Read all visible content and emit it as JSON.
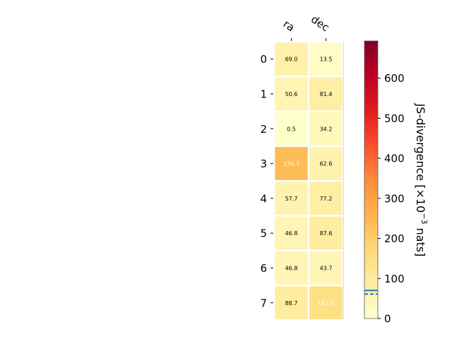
{
  "chart_data": {
    "type": "heatmap",
    "columns": [
      "ra",
      "dec"
    ],
    "rows": [
      "0",
      "1",
      "2",
      "3",
      "4",
      "5",
      "6",
      "7"
    ],
    "values": [
      [
        69.0,
        13.5
      ],
      [
        50.6,
        81.4
      ],
      [
        0.5,
        34.2
      ],
      [
        236.7,
        62.6
      ],
      [
        57.7,
        77.2
      ],
      [
        46.8,
        87.6
      ],
      [
        46.8,
        43.7
      ],
      [
        88.7,
        141.5
      ]
    ],
    "value_labels": [
      [
        "69.0",
        "13.5"
      ],
      [
        "50.6",
        "81.4"
      ],
      [
        "0.5",
        "34.2"
      ],
      [
        "236.7",
        "62.6"
      ],
      [
        "57.7",
        "77.2"
      ],
      [
        "46.8",
        "87.6"
      ],
      [
        "46.8",
        "43.7"
      ],
      [
        "88.7",
        "141.5"
      ]
    ],
    "colorbar": {
      "label_main": "JS-divergence [×10",
      "label_exp": "−3",
      "label_unit": " nats]",
      "range": [
        0,
        693
      ],
      "ticks": [
        0,
        100,
        200,
        300,
        400,
        500,
        600
      ],
      "colormap": "YlOrRd",
      "markers": [
        {
          "value": 70,
          "style": "solid",
          "color": "#1f77b4"
        },
        {
          "value": 61,
          "style": "dashed",
          "color": "#1f77b4"
        }
      ]
    }
  }
}
